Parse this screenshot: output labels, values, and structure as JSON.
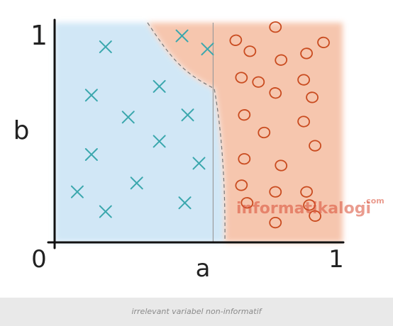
{
  "chart_data": {
    "type": "scatter",
    "title": "",
    "xlabel": "a",
    "ylabel": "b",
    "xlim": [
      0,
      1
    ],
    "ylim": [
      0,
      1
    ],
    "tick_labels": {
      "origin": "0",
      "x_max": "1",
      "y_max": "1"
    },
    "series": [
      {
        "marker": "x",
        "color": "#3aa7ad",
        "points": [
          [
            0.18,
            0.89
          ],
          [
            0.45,
            0.94
          ],
          [
            0.54,
            0.88
          ],
          [
            0.37,
            0.71
          ],
          [
            0.13,
            0.67
          ],
          [
            0.26,
            0.57
          ],
          [
            0.47,
            0.58
          ],
          [
            0.37,
            0.46
          ],
          [
            0.13,
            0.4
          ],
          [
            0.51,
            0.36
          ],
          [
            0.29,
            0.27
          ],
          [
            0.08,
            0.23
          ],
          [
            0.46,
            0.18
          ],
          [
            0.18,
            0.14
          ]
        ]
      },
      {
        "marker": "o",
        "color": "#c94b1f",
        "points": [
          [
            0.78,
            0.98
          ],
          [
            0.64,
            0.92
          ],
          [
            0.69,
            0.87
          ],
          [
            0.8,
            0.83
          ],
          [
            0.95,
            0.91
          ],
          [
            0.89,
            0.86
          ],
          [
            0.66,
            0.75
          ],
          [
            0.72,
            0.73
          ],
          [
            0.78,
            0.68
          ],
          [
            0.88,
            0.74
          ],
          [
            0.67,
            0.58
          ],
          [
            0.91,
            0.66
          ],
          [
            0.74,
            0.5
          ],
          [
            0.88,
            0.55
          ],
          [
            0.67,
            0.38
          ],
          [
            0.8,
            0.35
          ],
          [
            0.92,
            0.44
          ],
          [
            0.66,
            0.26
          ],
          [
            0.78,
            0.23
          ],
          [
            0.89,
            0.23
          ],
          [
            0.68,
            0.18
          ],
          [
            0.9,
            0.17
          ],
          [
            0.92,
            0.12
          ],
          [
            0.78,
            0.09
          ]
        ]
      }
    ],
    "divider_x": 0.56,
    "colors": {
      "blue_region": "#cfe6f6",
      "orange_region": "#f6c3aa",
      "axis": "#111111",
      "divider": "#9b9b9b",
      "boundary": "#777777"
    }
  },
  "watermark": {
    "text": "informatikalogi",
    "suffix": ".com",
    "color": "#d94d35"
  },
  "caption": "irrelevant variabel non-informatif"
}
